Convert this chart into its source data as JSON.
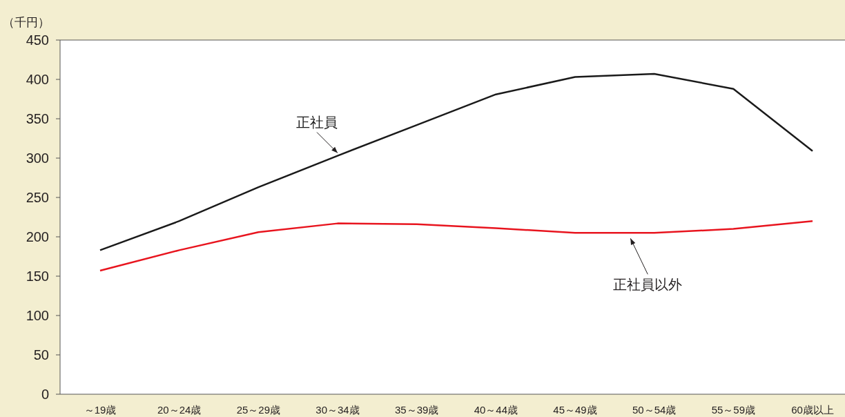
{
  "chart_data": {
    "type": "line",
    "ylabel": "（千円）",
    "categories": [
      "～19歳",
      "20～24歳",
      "25～29歳",
      "30～34歳",
      "35～39歳",
      "40～44歳",
      "45～49歳",
      "50～54歳",
      "55～59歳",
      "60歳以上"
    ],
    "series": [
      {
        "name": "正社員",
        "color": "#1a1a1a",
        "values": [
          183,
          220,
          263,
          303,
          342,
          381,
          403,
          407,
          388,
          309
        ]
      },
      {
        "name": "正社員以外",
        "color": "#e8141e",
        "values": [
          157,
          183,
          206,
          217,
          216,
          211,
          205,
          205,
          210,
          220
        ]
      }
    ],
    "ylim": [
      0,
      450
    ],
    "yticks": [
      0,
      50,
      100,
      150,
      200,
      250,
      300,
      350,
      400,
      450
    ],
    "grid": false,
    "legend": false,
    "marker": "none",
    "line_style": "solid"
  }
}
